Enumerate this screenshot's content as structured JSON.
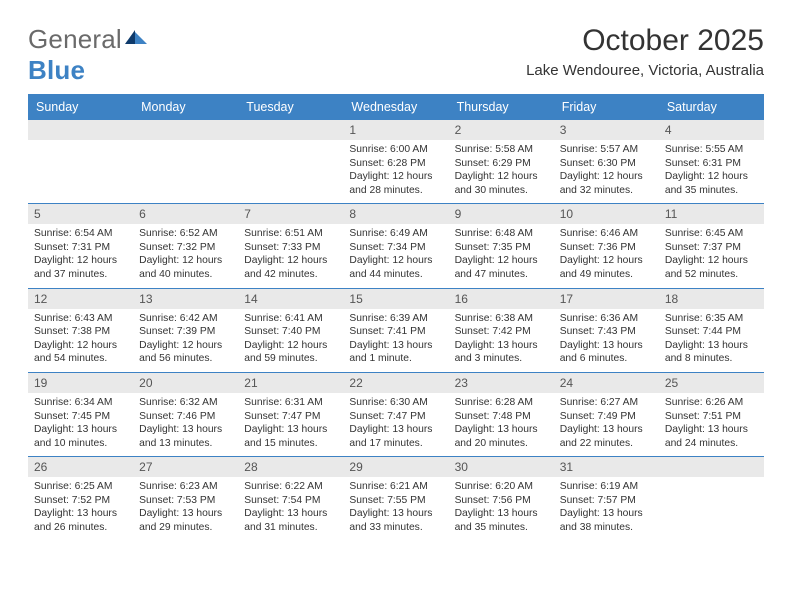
{
  "brand": {
    "text1": "General",
    "text2": "Blue",
    "gray": "#6a6a6a",
    "blue": "#3d82c4"
  },
  "title": "October 2025",
  "location": "Lake Wendouree, Victoria, Australia",
  "colors": {
    "header_bg": "#3d82c4",
    "header_text": "#ffffff",
    "daynum_bg": "#e9e9e9",
    "daynum_text": "#555555",
    "row_divider": "#3d82c4",
    "body_text": "#333333",
    "page_bg": "#ffffff"
  },
  "weekdays": [
    "Sunday",
    "Monday",
    "Tuesday",
    "Wednesday",
    "Thursday",
    "Friday",
    "Saturday"
  ],
  "weeks": [
    [
      null,
      null,
      null,
      {
        "n": "1",
        "sr": "6:00 AM",
        "ss": "6:28 PM",
        "dl": "12 hours and 28 minutes."
      },
      {
        "n": "2",
        "sr": "5:58 AM",
        "ss": "6:29 PM",
        "dl": "12 hours and 30 minutes."
      },
      {
        "n": "3",
        "sr": "5:57 AM",
        "ss": "6:30 PM",
        "dl": "12 hours and 32 minutes."
      },
      {
        "n": "4",
        "sr": "5:55 AM",
        "ss": "6:31 PM",
        "dl": "12 hours and 35 minutes."
      }
    ],
    [
      {
        "n": "5",
        "sr": "6:54 AM",
        "ss": "7:31 PM",
        "dl": "12 hours and 37 minutes."
      },
      {
        "n": "6",
        "sr": "6:52 AM",
        "ss": "7:32 PM",
        "dl": "12 hours and 40 minutes."
      },
      {
        "n": "7",
        "sr": "6:51 AM",
        "ss": "7:33 PM",
        "dl": "12 hours and 42 minutes."
      },
      {
        "n": "8",
        "sr": "6:49 AM",
        "ss": "7:34 PM",
        "dl": "12 hours and 44 minutes."
      },
      {
        "n": "9",
        "sr": "6:48 AM",
        "ss": "7:35 PM",
        "dl": "12 hours and 47 minutes."
      },
      {
        "n": "10",
        "sr": "6:46 AM",
        "ss": "7:36 PM",
        "dl": "12 hours and 49 minutes."
      },
      {
        "n": "11",
        "sr": "6:45 AM",
        "ss": "7:37 PM",
        "dl": "12 hours and 52 minutes."
      }
    ],
    [
      {
        "n": "12",
        "sr": "6:43 AM",
        "ss": "7:38 PM",
        "dl": "12 hours and 54 minutes."
      },
      {
        "n": "13",
        "sr": "6:42 AM",
        "ss": "7:39 PM",
        "dl": "12 hours and 56 minutes."
      },
      {
        "n": "14",
        "sr": "6:41 AM",
        "ss": "7:40 PM",
        "dl": "12 hours and 59 minutes."
      },
      {
        "n": "15",
        "sr": "6:39 AM",
        "ss": "7:41 PM",
        "dl": "13 hours and 1 minute."
      },
      {
        "n": "16",
        "sr": "6:38 AM",
        "ss": "7:42 PM",
        "dl": "13 hours and 3 minutes."
      },
      {
        "n": "17",
        "sr": "6:36 AM",
        "ss": "7:43 PM",
        "dl": "13 hours and 6 minutes."
      },
      {
        "n": "18",
        "sr": "6:35 AM",
        "ss": "7:44 PM",
        "dl": "13 hours and 8 minutes."
      }
    ],
    [
      {
        "n": "19",
        "sr": "6:34 AM",
        "ss": "7:45 PM",
        "dl": "13 hours and 10 minutes."
      },
      {
        "n": "20",
        "sr": "6:32 AM",
        "ss": "7:46 PM",
        "dl": "13 hours and 13 minutes."
      },
      {
        "n": "21",
        "sr": "6:31 AM",
        "ss": "7:47 PM",
        "dl": "13 hours and 15 minutes."
      },
      {
        "n": "22",
        "sr": "6:30 AM",
        "ss": "7:47 PM",
        "dl": "13 hours and 17 minutes."
      },
      {
        "n": "23",
        "sr": "6:28 AM",
        "ss": "7:48 PM",
        "dl": "13 hours and 20 minutes."
      },
      {
        "n": "24",
        "sr": "6:27 AM",
        "ss": "7:49 PM",
        "dl": "13 hours and 22 minutes."
      },
      {
        "n": "25",
        "sr": "6:26 AM",
        "ss": "7:51 PM",
        "dl": "13 hours and 24 minutes."
      }
    ],
    [
      {
        "n": "26",
        "sr": "6:25 AM",
        "ss": "7:52 PM",
        "dl": "13 hours and 26 minutes."
      },
      {
        "n": "27",
        "sr": "6:23 AM",
        "ss": "7:53 PM",
        "dl": "13 hours and 29 minutes."
      },
      {
        "n": "28",
        "sr": "6:22 AM",
        "ss": "7:54 PM",
        "dl": "13 hours and 31 minutes."
      },
      {
        "n": "29",
        "sr": "6:21 AM",
        "ss": "7:55 PM",
        "dl": "13 hours and 33 minutes."
      },
      {
        "n": "30",
        "sr": "6:20 AM",
        "ss": "7:56 PM",
        "dl": "13 hours and 35 minutes."
      },
      {
        "n": "31",
        "sr": "6:19 AM",
        "ss": "7:57 PM",
        "dl": "13 hours and 38 minutes."
      },
      null
    ]
  ],
  "labels": {
    "sunrise": "Sunrise:",
    "sunset": "Sunset:",
    "daylight": "Daylight:"
  }
}
